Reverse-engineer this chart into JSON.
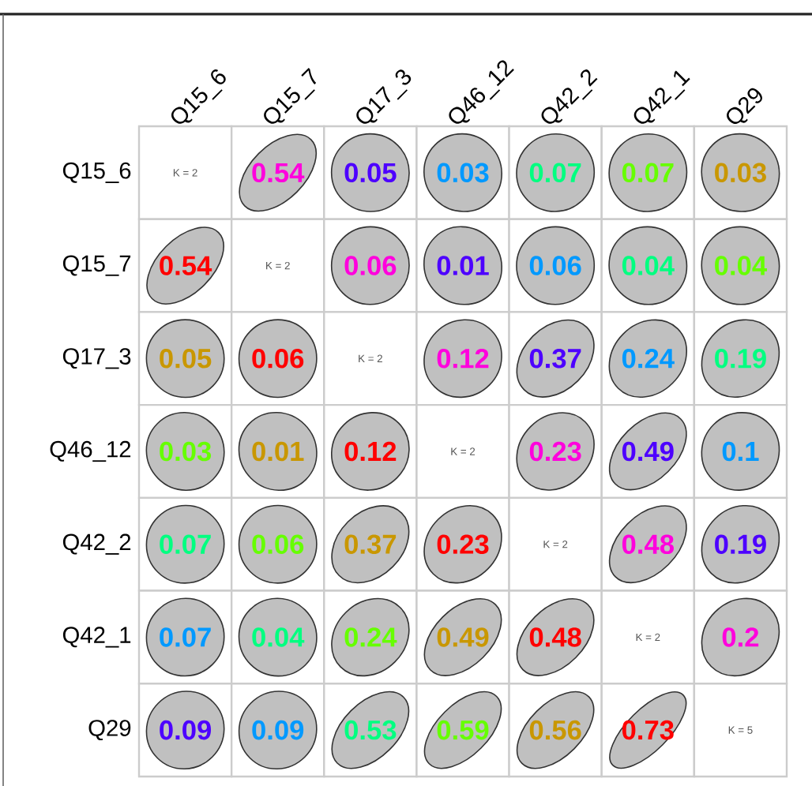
{
  "chart_data": {
    "type": "heatmap",
    "categories": [
      "Q15_6",
      "Q15_7",
      "Q17_3",
      "Q46_12",
      "Q42_2",
      "Q42_1",
      "Q29"
    ],
    "y_categories": [
      "Q15_6",
      "Q15_7",
      "Q17_3",
      "Q46_12",
      "Q42_2",
      "Q42_1",
      "Q29"
    ],
    "color": "#c0c0c0",
    "cells": [
      [
        null,
        0.54,
        0.05,
        0.03,
        0.07,
        0.07,
        0.03
      ],
      [
        0.54,
        null,
        0.06,
        0.01,
        0.06,
        0.04,
        0.04
      ],
      [
        0.05,
        0.06,
        null,
        0.12,
        0.37,
        0.24,
        0.19
      ],
      [
        0.03,
        0.01,
        0.12,
        null,
        0.23,
        0.49,
        0.1
      ],
      [
        0.07,
        0.06,
        0.37,
        0.23,
        null,
        0.48,
        0.19
      ],
      [
        0.07,
        0.04,
        0.24,
        0.49,
        0.48,
        null,
        0.2
      ],
      [
        0.09,
        0.09,
        0.53,
        0.59,
        0.56,
        0.73,
        null
      ]
    ],
    "cell_labels": [
      [
        "K = 2",
        "0.54",
        "0.05",
        "0.03",
        "0.07",
        "0.07",
        "0.03"
      ],
      [
        "0.54",
        "K = 2",
        "0.06",
        "0.01",
        "0.06",
        "0.04",
        "0.04"
      ],
      [
        "0.05",
        "0.06",
        "K = 2",
        "0.12",
        "0.37",
        "0.24",
        "0.19"
      ],
      [
        "0.03",
        "0.01",
        "0.12",
        "K = 2",
        "0.23",
        "0.49",
        "0.1"
      ],
      [
        "0.07",
        "0.06",
        "0.37",
        "0.23",
        "K = 2",
        "0.48",
        "0.19"
      ],
      [
        "0.07",
        "0.04",
        "0.24",
        "0.49",
        "0.48",
        "K = 2",
        "0.2"
      ],
      [
        "0.09",
        "0.09",
        "0.53",
        "0.59",
        "0.56",
        "0.73",
        "K = 5"
      ]
    ],
    "colors": [
      [
        "#555555",
        "#ff00dd",
        "#4d00ff",
        "#0099ff",
        "#00ff80",
        "#66ff00",
        "#c99700"
      ],
      [
        "#ff0000",
        "#555555",
        "#ff00dd",
        "#4d00ff",
        "#0099ff",
        "#00ff80",
        "#66ff00"
      ],
      [
        "#c99700",
        "#ff0000",
        "#555555",
        "#ff00dd",
        "#4d00ff",
        "#0099ff",
        "#00ff80"
      ],
      [
        "#66ff00",
        "#c99700",
        "#ff0000",
        "#555555",
        "#ff00dd",
        "#4d00ff",
        "#0099ff"
      ],
      [
        "#00ff80",
        "#66ff00",
        "#c99700",
        "#ff0000",
        "#555555",
        "#ff00dd",
        "#4d00ff"
      ],
      [
        "#0099ff",
        "#00ff80",
        "#66ff00",
        "#c99700",
        "#ff0000",
        "#555555",
        "#ff00dd"
      ],
      [
        "#4d00ff",
        "#0099ff",
        "#00ff80",
        "#66ff00",
        "#c99700",
        "#ff0000",
        "#555555"
      ]
    ]
  }
}
